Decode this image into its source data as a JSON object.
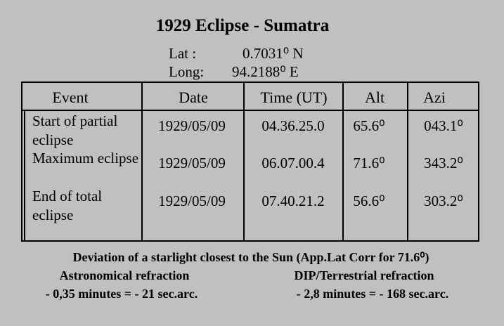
{
  "header": {
    "title": "1929 Eclipse - Sumatra",
    "lat": {
      "label": "Lat   :",
      "value": "0.7031⁰  N"
    },
    "long": {
      "label": "Long:",
      "value": "94.2188⁰  E"
    }
  },
  "table": {
    "columns": [
      "Event",
      "Date",
      "Time (UT)",
      "Alt",
      "Azi"
    ],
    "rows": [
      [
        "Start of partial eclipse",
        "1929/05/09",
        "04.36.25.0",
        "65.6⁰",
        "043.1⁰"
      ],
      [
        "Maximum eclipse",
        "1929/05/09",
        "06.07.00.4",
        "71.6⁰",
        "343.2⁰"
      ],
      [
        "End of total eclipse",
        "1929/05/09",
        "07.40.21.2",
        "56.6⁰",
        "303.2⁰"
      ]
    ]
  },
  "footer": {
    "note": "Deviation of a starlight  closest to the Sun (App.Lat Corr for 71.6⁰)",
    "left": {
      "heading": "Astronomical refraction",
      "value": "- 0,35 minutes = - 21 sec.arc."
    },
    "right": {
      "heading": "DIP/Terrestrial refraction",
      "value": "- 2,8 minutes = - 168 sec.arc."
    }
  }
}
